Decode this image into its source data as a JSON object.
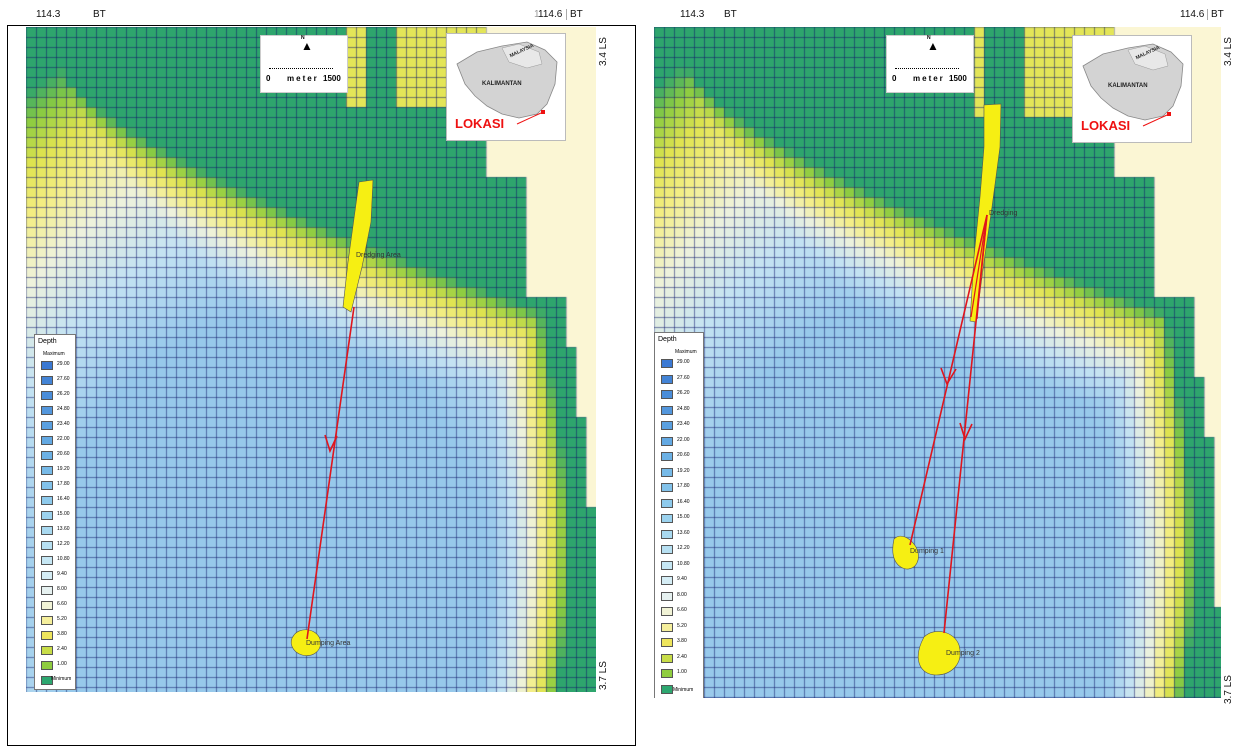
{
  "colors": {
    "sea_deep": "#3d7fd6",
    "sea_shallow": "#d9ecf5",
    "land": "#fbf6d4",
    "mangrove": "#1a9a6a",
    "route": "#e0151d",
    "dredge": "#f6ef13"
  },
  "legend_colors": [
    "#3b79d3",
    "#4384d6",
    "#4a8dd9",
    "#5397dd",
    "#5aa0e0",
    "#63a9e3",
    "#6cb1e5",
    "#77bae8",
    "#82c2ea",
    "#8ecaec",
    "#9bd2ee",
    "#a9d9f0",
    "#b7e0f2",
    "#c6e7f4",
    "#d5edf5",
    "#e6f1f0",
    "#f1f3d6",
    "#f5ef9c",
    "#eee55c",
    "#c8dd48",
    "#8fcd3f",
    "#2da770"
  ],
  "maps": [
    {
      "top_left_coord": "114.3",
      "top_left_unit": "BT",
      "top_right_coord": "114.6",
      "top_right_unit": "BT",
      "top_right_prefix": "1",
      "right_top_coord": "3.4 LS",
      "right_bottom_coord": "3.7 LS",
      "north_symbol": "N",
      "scale_zero": "0",
      "scale_unit": "meter",
      "scale_max": "1500",
      "inset_country": "MALAYSIA",
      "inset_region": "KALIMANTAN",
      "inset_label": "LOKASI",
      "legend_title": "Depth",
      "legend_max": "Maximum",
      "legend_min": "Minimum",
      "legend_values": [
        "29.00",
        "27.60",
        "26.20",
        "24.80",
        "23.40",
        "22.00",
        "20.60",
        "19.20",
        "17.80",
        "16.40",
        "15.00",
        "13.60",
        "12.20",
        "10.80",
        "9.40",
        "8.00",
        "6.60",
        "5.20",
        "3.80",
        "2.40",
        "1.00"
      ],
      "labels": [
        "Dredging Area",
        "Dumping Area"
      ]
    },
    {
      "top_left_coord": "114.3",
      "top_left_unit": "BT",
      "top_right_coord": "114.6",
      "top_right_unit": "BT",
      "right_top_coord": "3.4 LS",
      "right_bottom_coord": "3.7 LS",
      "north_symbol": "N",
      "scale_zero": "0",
      "scale_unit": "meter",
      "scale_max": "1500",
      "inset_country": "MALAYSIA",
      "inset_region": "KALIMANTAN",
      "inset_label": "LOKASI",
      "legend_title": "Depth",
      "legend_max": "Maximum",
      "legend_min": "Minimum",
      "legend_values": [
        "29.00",
        "27.60",
        "26.20",
        "24.80",
        "23.40",
        "22.00",
        "20.60",
        "19.20",
        "17.80",
        "16.40",
        "15.00",
        "13.60",
        "12.20",
        "10.80",
        "9.40",
        "8.00",
        "6.60",
        "5.20",
        "3.80",
        "2.40",
        "1.00"
      ],
      "labels": [
        "Dredging",
        "Dumping 1",
        "Dumping 2"
      ]
    }
  ]
}
